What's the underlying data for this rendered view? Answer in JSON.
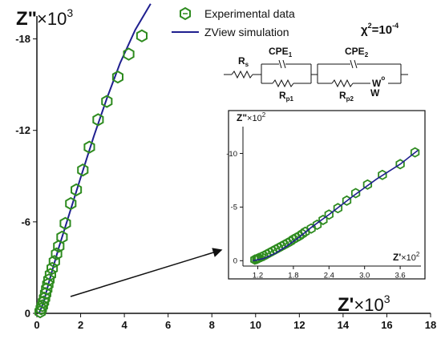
{
  "chart_data": [
    {
      "type": "scatter",
      "x_axis": {
        "label_main": "Z'",
        "label_rest": "×10",
        "label_exp": "3",
        "ticks": [
          "0",
          "2",
          "4",
          "6",
          "8",
          "10",
          "12",
          "14",
          "16",
          "18"
        ],
        "xlim": [
          0,
          18
        ]
      },
      "y_axis": {
        "label_main": "Z\"",
        "label_rest": "×10",
        "label_exp": "3",
        "ticks": [
          "0",
          "-6",
          "-12",
          "-18"
        ],
        "ylim": [
          0,
          -19.5
        ]
      },
      "legend": {
        "placement": "top",
        "entries": [
          "Experimental data",
          "ZView simulation"
        ]
      },
      "series": [
        {
          "name": "Experimental data",
          "marker": "hexagon",
          "color": "#2e8b1f",
          "points": [
            [
              0.15,
              -0.1
            ],
            [
              0.2,
              -0.3
            ],
            [
              0.25,
              -0.5
            ],
            [
              0.3,
              -0.75
            ],
            [
              0.35,
              -1.0
            ],
            [
              0.4,
              -1.3
            ],
            [
              0.45,
              -1.6
            ],
            [
              0.5,
              -1.9
            ],
            [
              0.55,
              -2.2
            ],
            [
              0.62,
              -2.55
            ],
            [
              0.7,
              -2.95
            ],
            [
              0.8,
              -3.4
            ],
            [
              0.9,
              -3.9
            ],
            [
              1.0,
              -4.4
            ],
            [
              1.15,
              -5.0
            ],
            [
              1.3,
              -5.9
            ],
            [
              1.55,
              -7.2
            ],
            [
              1.8,
              -8.1
            ],
            [
              2.1,
              -9.4
            ],
            [
              2.4,
              -10.9
            ],
            [
              2.8,
              -12.7
            ],
            [
              3.2,
              -13.9
            ],
            [
              3.7,
              -15.5
            ],
            [
              4.2,
              -17.0
            ],
            [
              4.8,
              -18.2
            ]
          ]
        },
        {
          "name": "ZView simulation",
          "type": "line",
          "color": "#1f1f8f",
          "points": [
            [
              0.1,
              0.0
            ],
            [
              0.3,
              -0.7
            ],
            [
              0.6,
              -2.3
            ],
            [
              1.0,
              -4.3
            ],
            [
              1.5,
              -6.6
            ],
            [
              2.0,
              -8.9
            ],
            [
              2.6,
              -11.6
            ],
            [
              3.2,
              -14.1
            ],
            [
              3.8,
              -16.4
            ],
            [
              4.5,
              -18.6
            ],
            [
              5.2,
              -20.3
            ]
          ]
        }
      ],
      "annotations": {
        "chi_squared": "χ",
        "chi_squared_exp": "2",
        "chi_squared_eq": "=10",
        "chi_squared_val_exp": "-4",
        "circuit": {
          "Rs": "R",
          "Rs_sub": "s",
          "CPE1": "CPE",
          "CPE1_sub": "1",
          "CPE2": "CPE",
          "CPE2_sub": "2",
          "Rp1": "R",
          "Rp1_sub": "p1",
          "Rp2": "R",
          "Rp2_sub": "p2",
          "Wo": "W",
          "Wo_sub": "o",
          "W": "W"
        }
      }
    },
    {
      "type": "scatter",
      "inset": true,
      "x_axis": {
        "label_main": "Z'",
        "label_rest": "×10",
        "label_exp": "2",
        "ticks": [
          "1.2",
          "1.8",
          "2.4",
          "3.0",
          "3.6"
        ],
        "xlim": [
          0.95,
          3.95
        ]
      },
      "y_axis": {
        "label_main": "Z\"",
        "label_rest": "×10",
        "label_exp": "2",
        "ticks": [
          "0",
          "-5",
          "-10"
        ],
        "ylim": [
          0.5,
          -12.5
        ]
      },
      "series": [
        {
          "name": "Experimental data",
          "marker": "hexagon",
          "color": "#2e8b1f",
          "points": [
            [
              1.15,
              -0.1
            ],
            [
              1.18,
              -0.15
            ],
            [
              1.2,
              -0.2
            ],
            [
              1.22,
              -0.25
            ],
            [
              1.26,
              -0.35
            ],
            [
              1.3,
              -0.45
            ],
            [
              1.35,
              -0.6
            ],
            [
              1.4,
              -0.75
            ],
            [
              1.45,
              -0.9
            ],
            [
              1.5,
              -1.05
            ],
            [
              1.55,
              -1.2
            ],
            [
              1.6,
              -1.35
            ],
            [
              1.65,
              -1.5
            ],
            [
              1.7,
              -1.65
            ],
            [
              1.75,
              -1.8
            ],
            [
              1.8,
              -2.0
            ],
            [
              1.85,
              -2.15
            ],
            [
              1.9,
              -2.3
            ],
            [
              1.95,
              -2.5
            ],
            [
              2.0,
              -2.7
            ],
            [
              2.1,
              -3.0
            ],
            [
              2.2,
              -3.35
            ],
            [
              2.3,
              -3.8
            ],
            [
              2.4,
              -4.3
            ],
            [
              2.55,
              -4.9
            ],
            [
              2.7,
              -5.6
            ],
            [
              2.85,
              -6.3
            ],
            [
              3.05,
              -7.1
            ],
            [
              3.3,
              -8.0
            ],
            [
              3.6,
              -9.0
            ],
            [
              3.85,
              -10.1
            ]
          ]
        },
        {
          "name": "ZView simulation",
          "type": "line",
          "color": "#1f1f8f",
          "points": [
            [
              1.12,
              0.0
            ],
            [
              1.3,
              -0.2
            ],
            [
              1.5,
              -0.7
            ],
            [
              1.7,
              -1.4
            ],
            [
              1.9,
              -2.2
            ],
            [
              2.1,
              -3.1
            ],
            [
              2.4,
              -4.3
            ],
            [
              2.8,
              -6.0
            ],
            [
              3.2,
              -7.6
            ],
            [
              3.6,
              -9.0
            ],
            [
              3.9,
              -10.3
            ]
          ]
        }
      ]
    }
  ]
}
